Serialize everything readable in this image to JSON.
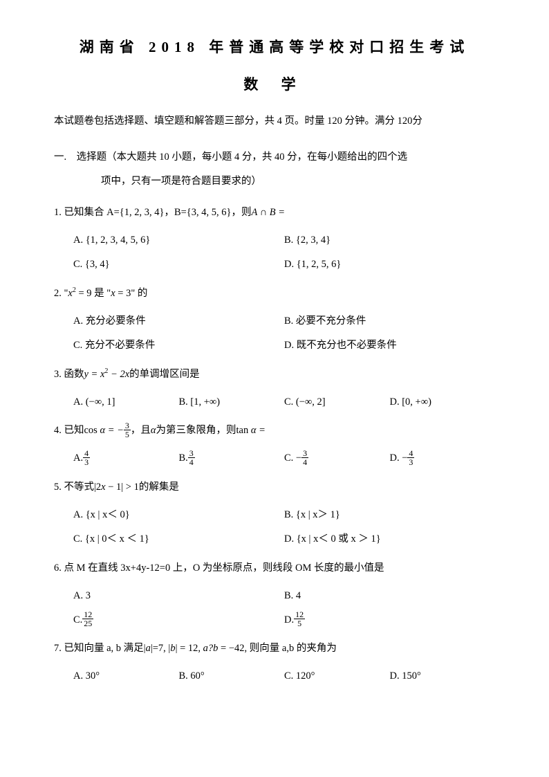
{
  "title": "湖南省 2018 年普通高等学校对口招生考试",
  "subtitle": "数 学",
  "intro": "本试题卷包括选择题、填空题和解答题三部分，共 4 页。时量 120 分钟。满分 120分",
  "section1_l1": "一.　选择题（本大题共 10 小题，每小题 4 分，共 40 分，在每小题给出的四个选",
  "section1_l2": "项中，只有一项是符合题目要求的）",
  "q1": {
    "stem_prefix": "1. 已知集合 A={1, 2, 3, 4}，B={3, 4, 5, 6}，则",
    "stem_suffix": "A ∩ B =",
    "A": "A. {1, 2, 3, 4, 5, 6}",
    "B": "B. {2, 3, 4}",
    "C": "C. {3, 4}",
    "D": "D. {1, 2, 5, 6}"
  },
  "q2": {
    "stem_p1": "2. \"",
    "stem_p2": " = 9 是 \"",
    "stem_p3": " = 3\" 的",
    "A": "A. 充分必要条件",
    "B": "B. 必要不充分条件",
    "C": "C. 充分不必要条件",
    "D": "D. 既不充分也不必要条件"
  },
  "q3": {
    "stem_p1": "3. 函数",
    "stem_p2": "的单调增区间是",
    "A": "A. (−∞, 1]",
    "B": "B. [1, +∞)",
    "C": "C. (−∞, 2]",
    "D": "D. [0, +∞)"
  },
  "q4": {
    "stem_p1": "4. 已知cos",
    "stem_p2": "，且",
    "stem_p3": "为第三象限角，则tan",
    "A": "A.",
    "B": "B.",
    "C": "C. −",
    "D": "D. −"
  },
  "q5": {
    "stem_p1": "5. 不等式|2",
    "stem_p2": " − 1| > 1的解集是",
    "A": "A. {x | x＜ 0}",
    "B": "B. {x | x＞ 1}",
    "C": "C. {x | 0＜ x ＜ 1}",
    "D": "D. {x | x＜ 0 或 x ＞ 1}"
  },
  "q6": {
    "stem": "6. 点 M 在直线 3x+4y-12=0 上，O 为坐标原点，则线段 OM 长度的最小值是",
    "A": "A. 3",
    "B": "B. 4",
    "C": "C.",
    "D": "D."
  },
  "q7": {
    "stem_p1": "7. 已知向量 a, b 满足|",
    "stem_p2": "|=7, |",
    "stem_p3": "| = 12, ",
    "stem_p4": " = −42, 则向量 a,b 的夹角为",
    "A": "A. 30°",
    "B": "B. 60°",
    "C": "C. 120°",
    "D": "D. 150°"
  },
  "frac": {
    "three_five": {
      "n": "3",
      "d": "5"
    },
    "four_three": {
      "n": "4",
      "d": "3"
    },
    "three_four": {
      "n": "3",
      "d": "4"
    },
    "twelve_25": {
      "n": "12",
      "d": "25"
    },
    "twelve_5": {
      "n": "12",
      "d": "5"
    }
  }
}
